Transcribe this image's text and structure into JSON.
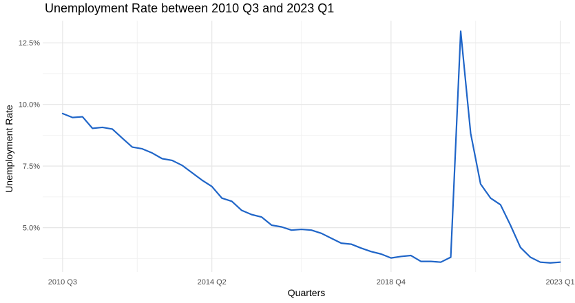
{
  "chart_data": {
    "type": "line",
    "title": "Unemployment Rate between 2010 Q3 and 2023 Q1",
    "xlabel": "Quarters",
    "ylabel": "Unemployment Rate",
    "x_tick_labels": [
      "2010 Q3",
      "2014 Q2",
      "2018 Q4",
      "2023 Q1"
    ],
    "x_tick_index": [
      0,
      15,
      33,
      50
    ],
    "y_tick_labels": [
      "5.0%",
      "7.5%",
      "10.0%",
      "12.5%"
    ],
    "y_ticks": [
      5.0,
      7.5,
      10.0,
      12.5
    ],
    "ylim": [
      3.2,
      13.4
    ],
    "xlim": [
      -2,
      51
    ],
    "grid": true,
    "line_color": "#1f65c8",
    "series": [
      {
        "x": [
          "2010 Q3",
          "2010 Q4",
          "2011 Q1",
          "2011 Q2",
          "2011 Q3",
          "2011 Q4",
          "2012 Q1",
          "2012 Q2",
          "2012 Q3",
          "2012 Q4",
          "2013 Q1",
          "2013 Q2",
          "2013 Q3",
          "2013 Q4",
          "2014 Q1",
          "2014 Q2",
          "2014 Q3",
          "2014 Q4",
          "2015 Q1",
          "2015 Q2",
          "2015 Q3",
          "2015 Q4",
          "2016 Q1",
          "2016 Q2",
          "2016 Q3",
          "2016 Q4",
          "2017 Q1",
          "2017 Q2",
          "2017 Q3",
          "2017 Q4",
          "2018 Q1",
          "2018 Q2",
          "2018 Q3",
          "2018 Q4",
          "2019 Q1",
          "2019 Q2",
          "2019 Q3",
          "2019 Q4",
          "2020 Q1",
          "2020 Q2",
          "2020 Q3",
          "2020 Q4",
          "2021 Q1",
          "2021 Q2",
          "2021 Q3",
          "2021 Q4",
          "2022 Q1",
          "2022 Q2",
          "2022 Q3",
          "2022 Q4",
          "2023 Q1"
        ],
        "values": [
          9.63,
          9.47,
          9.5,
          9.03,
          9.07,
          9.0,
          8.63,
          8.27,
          8.2,
          8.03,
          7.8,
          7.73,
          7.53,
          7.23,
          6.93,
          6.67,
          6.2,
          6.07,
          5.7,
          5.53,
          5.43,
          5.1,
          5.03,
          4.9,
          4.93,
          4.9,
          4.77,
          4.57,
          4.37,
          4.33,
          4.17,
          4.03,
          3.93,
          3.77,
          3.83,
          3.87,
          3.63,
          3.63,
          3.6,
          3.8,
          12.97,
          8.83,
          6.77,
          6.2,
          5.93,
          5.1,
          4.2,
          3.8,
          3.6,
          3.57,
          3.6
        ]
      }
    ]
  }
}
